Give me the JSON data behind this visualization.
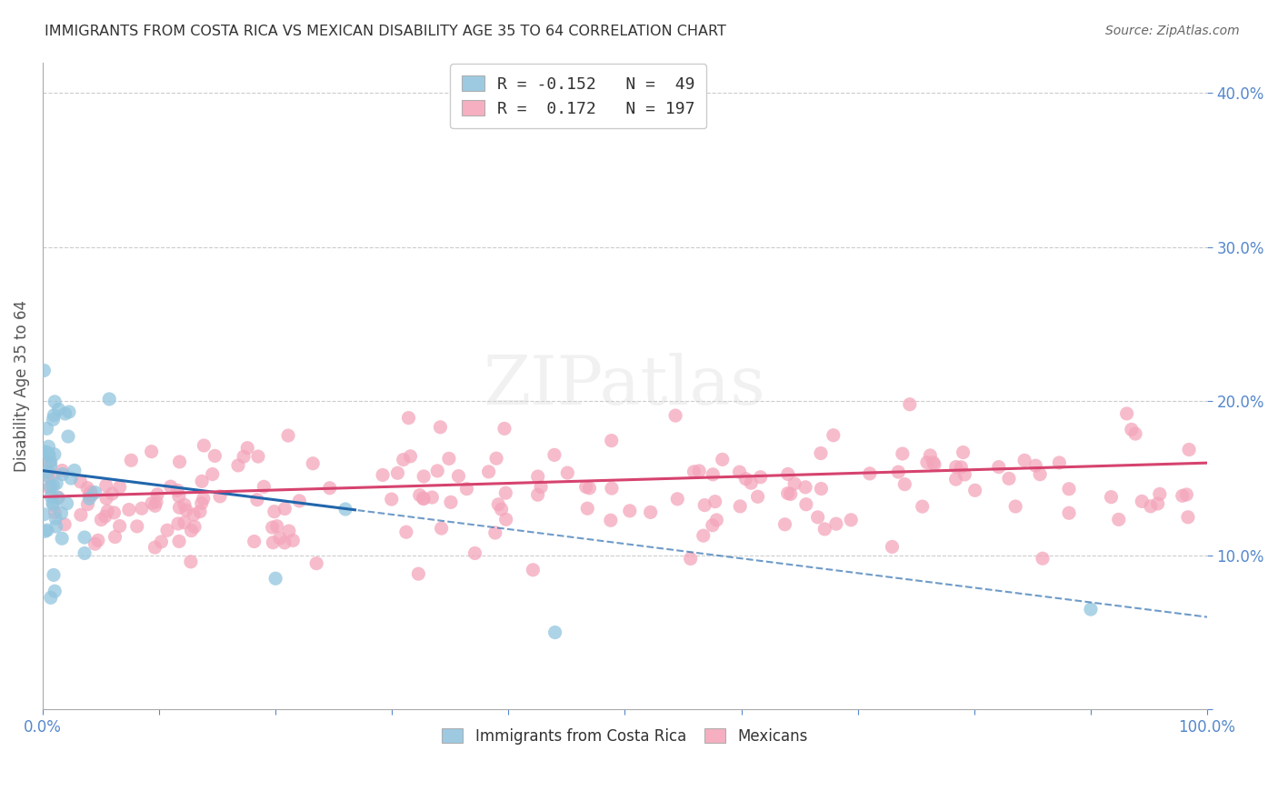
{
  "title": "IMMIGRANTS FROM COSTA RICA VS MEXICAN DISABILITY AGE 35 TO 64 CORRELATION CHART",
  "source": "Source: ZipAtlas.com",
  "ylabel": "Disability Age 35 to 64",
  "xlim": [
    0.0,
    1.0
  ],
  "ylim": [
    0.0,
    0.42
  ],
  "blue_color": "#92c5de",
  "pink_color": "#f4a6bb",
  "blue_line_color": "#2166ac",
  "pink_line_color": "#d6436e",
  "blue_R": -0.152,
  "blue_N": 49,
  "pink_R": 0.172,
  "pink_N": 197,
  "legend_label_blue": "Immigrants from Costa Rica",
  "legend_label_pink": "Mexicans",
  "tick_color": "#5588cc",
  "grid_color": "#cccccc",
  "title_color": "#333333",
  "source_color": "#666666",
  "watermark_color": "#dddddd"
}
